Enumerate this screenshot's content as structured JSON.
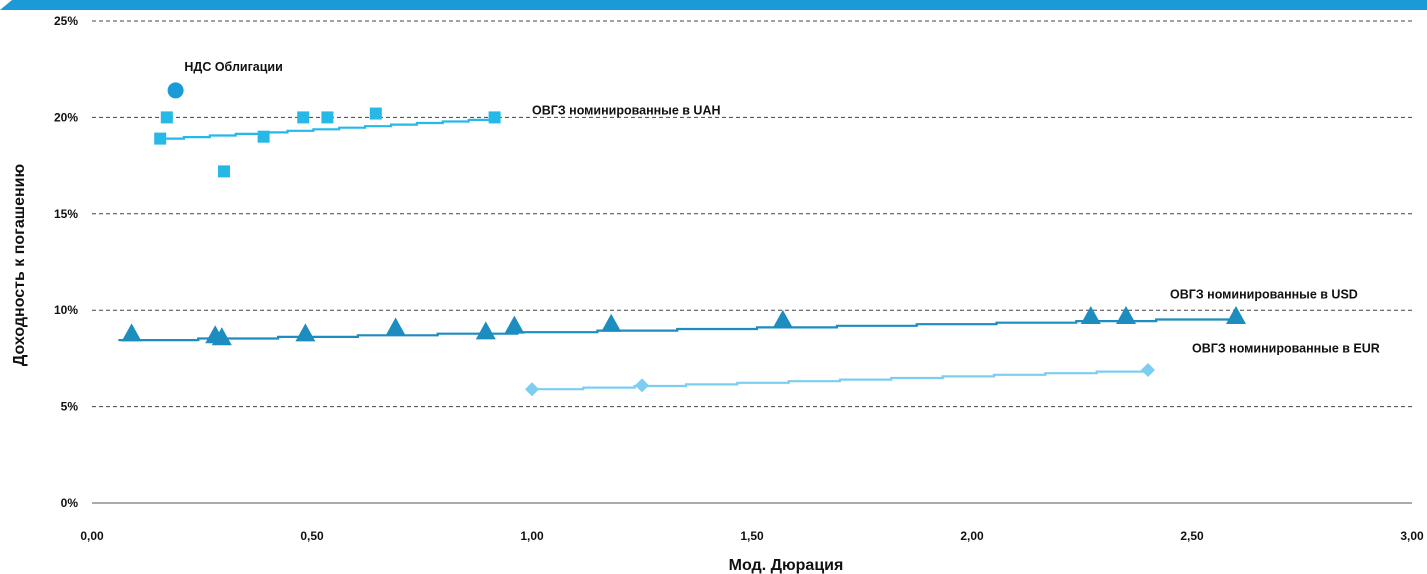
{
  "chart_data": {
    "type": "scatter",
    "xlabel": "Мод. Дюрация",
    "ylabel": "Доходность к погашению",
    "xlim": [
      0,
      3
    ],
    "ylim": [
      0,
      25
    ],
    "x_ticks": [
      "0,00",
      "0,50",
      "1,00",
      "1,50",
      "2,00",
      "2,50",
      "3,00"
    ],
    "y_ticks": [
      "0%",
      "5%",
      "10%",
      "15%",
      "20%",
      "25%"
    ],
    "grid": "horizontal-dashed",
    "legend": "none",
    "series": [
      {
        "marker": "circle",
        "color": "#1a9ad6",
        "points": [
          [
            0.19,
            21.4
          ]
        ]
      },
      {
        "marker": "square",
        "color": "#26b9e8",
        "points": [
          [
            0.155,
            18.9
          ],
          [
            0.17,
            20.0
          ],
          [
            0.3,
            17.2
          ],
          [
            0.39,
            19.0
          ],
          [
            0.48,
            20.0
          ],
          [
            0.535,
            20.0
          ],
          [
            0.645,
            20.2
          ],
          [
            0.915,
            20.0
          ]
        ],
        "trend": [
          [
            0.15,
            18.9
          ],
          [
            0.915,
            19.95
          ]
        ]
      },
      {
        "marker": "triangle",
        "color": "#1d8cbf",
        "points": [
          [
            0.09,
            8.8
          ],
          [
            0.28,
            8.7
          ],
          [
            0.295,
            8.6
          ],
          [
            0.485,
            8.8
          ],
          [
            0.69,
            9.1
          ],
          [
            0.895,
            8.9
          ],
          [
            0.96,
            9.2
          ],
          [
            1.18,
            9.3
          ],
          [
            1.57,
            9.5
          ],
          [
            2.27,
            9.7
          ],
          [
            2.35,
            9.7
          ],
          [
            2.6,
            9.7
          ]
        ],
        "trend": [
          [
            0.06,
            8.45
          ],
          [
            2.6,
            9.6
          ]
        ]
      },
      {
        "marker": "diamond",
        "color": "#7dcdf0",
        "points": [
          [
            1.0,
            5.9
          ],
          [
            1.25,
            6.1
          ],
          [
            2.4,
            6.9
          ]
        ],
        "trend": [
          [
            1.0,
            5.9
          ],
          [
            2.4,
            6.9
          ]
        ]
      }
    ],
    "annotations": [
      {
        "text": "НДС  Облигации",
        "x": 0.21,
        "y": 22.4
      },
      {
        "text": "ОВГЗ номинированные в UAH",
        "x": 1.0,
        "y": 20.15
      },
      {
        "text": "ОВГЗ номинированные в USD",
        "x": 2.45,
        "y": 10.6
      },
      {
        "text": "ОВГЗ номинированные в EUR",
        "x": 2.5,
        "y": 7.8
      }
    ]
  }
}
